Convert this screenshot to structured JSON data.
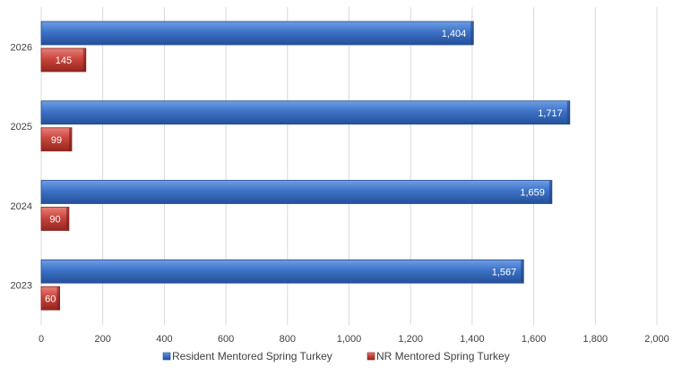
{
  "chart_data": {
    "type": "bar",
    "orientation": "horizontal",
    "categories": [
      "2026",
      "2025",
      "2024",
      "2023"
    ],
    "series": [
      {
        "name": "Resident Mentored Spring Turkey",
        "values": [
          1404,
          1717,
          1659,
          1567
        ],
        "labels": [
          "1,404",
          "1,717",
          "1,659",
          "1,567"
        ],
        "color": "#3a6fc4"
      },
      {
        "name": "NR Mentored Spring Turkey",
        "values": [
          145,
          99,
          90,
          60
        ],
        "labels": [
          "145",
          "99",
          "90",
          "60"
        ],
        "color": "#c9463d"
      }
    ],
    "xlim": [
      0,
      2000
    ],
    "xticks": [
      0,
      200,
      400,
      600,
      800,
      1000,
      1200,
      1400,
      1600,
      1800,
      2000
    ],
    "xtick_labels": [
      "0",
      "200",
      "400",
      "600",
      "800",
      "1,000",
      "1,200",
      "1,400",
      "1,600",
      "1,800",
      "2,000"
    ],
    "grid": true,
    "legend_position": "bottom"
  }
}
